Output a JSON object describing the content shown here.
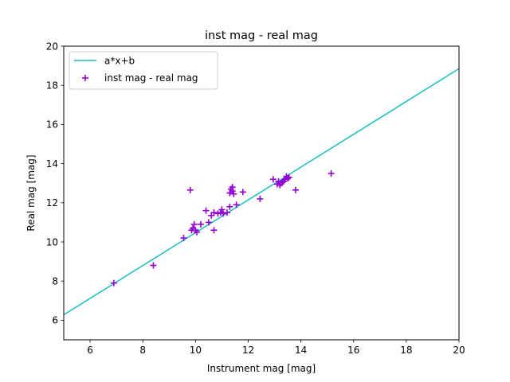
{
  "chart_data": {
    "type": "scatter",
    "title": "inst mag - real mag",
    "xlabel": "Instrument mag [mag]",
    "ylabel": "Real mag [mag]",
    "xlim": [
      5,
      20
    ],
    "ylim": [
      5,
      20
    ],
    "xticks": [
      "6",
      "8",
      "10",
      "12",
      "14",
      "16",
      "18",
      "20"
    ],
    "yticks": [
      "6",
      "8",
      "10",
      "12",
      "14",
      "16",
      "18",
      "20"
    ],
    "grid": false,
    "legend_position": "upper-left",
    "series": [
      {
        "name": "a*x+b",
        "kind": "line",
        "color": "#17bfbf",
        "x": [
          5,
          20
        ],
        "y": [
          6.28,
          18.85
        ]
      },
      {
        "name": "inst mag - real mag",
        "kind": "scatter",
        "marker": "+",
        "color": "#9400d3",
        "points": [
          [
            6.9,
            7.9
          ],
          [
            8.4,
            8.8
          ],
          [
            9.55,
            10.2
          ],
          [
            9.8,
            12.65
          ],
          [
            9.85,
            10.6
          ],
          [
            9.9,
            10.7
          ],
          [
            9.95,
            10.9
          ],
          [
            10.0,
            10.6
          ],
          [
            10.05,
            10.5
          ],
          [
            10.2,
            10.9
          ],
          [
            10.4,
            11.6
          ],
          [
            10.5,
            11.0
          ],
          [
            10.6,
            11.35
          ],
          [
            10.7,
            11.5
          ],
          [
            10.7,
            10.6
          ],
          [
            10.85,
            11.45
          ],
          [
            10.95,
            11.5
          ],
          [
            11.0,
            11.65
          ],
          [
            11.05,
            11.45
          ],
          [
            11.2,
            11.5
          ],
          [
            11.3,
            11.8
          ],
          [
            11.3,
            12.5
          ],
          [
            11.35,
            12.7
          ],
          [
            11.4,
            12.8
          ],
          [
            11.4,
            12.6
          ],
          [
            11.45,
            12.45
          ],
          [
            11.55,
            11.9
          ],
          [
            11.8,
            12.55
          ],
          [
            12.45,
            12.2
          ],
          [
            12.95,
            13.2
          ],
          [
            13.1,
            12.95
          ],
          [
            13.15,
            13.1
          ],
          [
            13.2,
            12.9
          ],
          [
            13.25,
            13.0
          ],
          [
            13.3,
            13.05
          ],
          [
            13.35,
            13.1
          ],
          [
            13.4,
            13.2
          ],
          [
            13.45,
            13.35
          ],
          [
            13.5,
            13.25
          ],
          [
            13.55,
            13.3
          ],
          [
            13.8,
            12.65
          ],
          [
            15.15,
            13.5
          ]
        ]
      }
    ]
  }
}
